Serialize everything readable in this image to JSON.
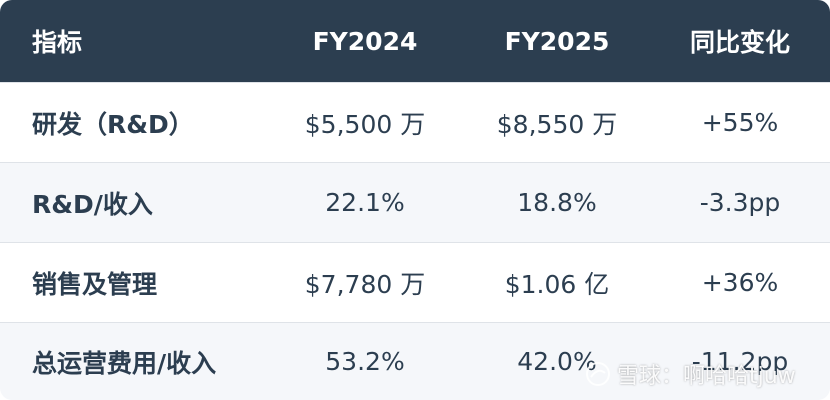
{
  "header": [
    "指标",
    "FY2024",
    "FY2025",
    "同比变化"
  ],
  "rows": [
    [
      "研发（R&D）",
      "$5,500 万",
      "$8,550 万",
      "+55%"
    ],
    [
      "R&D/收入",
      "22.1%",
      "18.8%",
      "-3.3pp"
    ],
    [
      "销售及管理",
      "$7,780 万",
      "$1.06 亿",
      "+36%"
    ],
    [
      "总运营费用/收入",
      "53.2%",
      "42.0%",
      "-11.2pp"
    ]
  ],
  "watermark": {
    "text": "雪球：啊哈哈tjuw",
    "icon": "snowball-logo-icon"
  },
  "colors": {
    "header_bg": "#2c3e50",
    "header_text": "#ffffff",
    "alt_row_bg": "#f5f7fa",
    "text": "#2c3e50"
  }
}
